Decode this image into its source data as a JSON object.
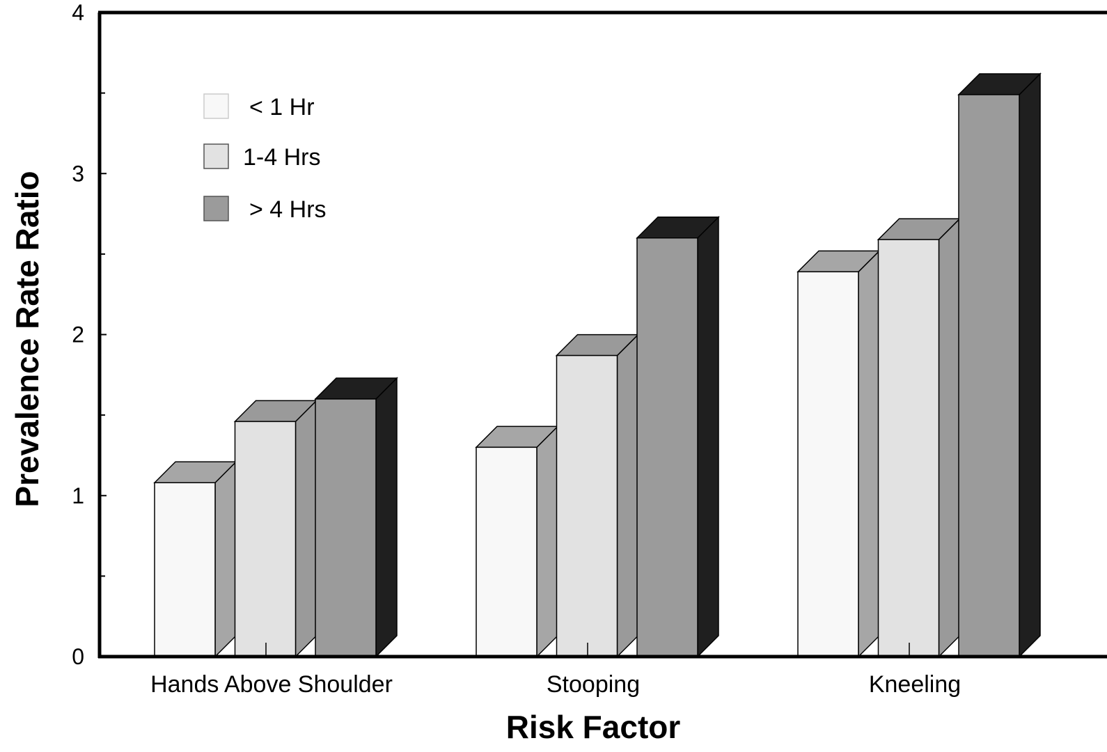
{
  "chart_data": {
    "type": "bar",
    "style": "3d-grouped",
    "title": "",
    "xlabel": "Risk Factor",
    "ylabel": "Prevalence Rate Ratio",
    "ylim": [
      0,
      4
    ],
    "yticks": [
      "0",
      "1",
      "2",
      "3",
      "4"
    ],
    "minor_ticks": [
      0.5,
      1.5,
      2.5,
      3.5
    ],
    "grid": false,
    "legend_position": "top-left",
    "categories": [
      "Hands Above Shoulder",
      "Stooping",
      "Kneeling"
    ],
    "series": [
      {
        "name": "< 1 Hr",
        "values": [
          1.08,
          1.3,
          2.39
        ],
        "colors": {
          "front": "#f8f8f8",
          "side": "#a6a6a6",
          "top": "#a6a6a6"
        }
      },
      {
        "name": "1-4 Hrs",
        "values": [
          1.46,
          1.87,
          2.59
        ],
        "colors": {
          "front": "#e2e2e2",
          "side": "#9a9a9a",
          "top": "#9a9a9a"
        }
      },
      {
        "name": "> 4 Hrs",
        "values": [
          1.6,
          2.6,
          3.49
        ],
        "colors": {
          "front": "#9b9b9b",
          "side": "#1f1f1f",
          "top": "#1f1f1f"
        }
      }
    ]
  }
}
